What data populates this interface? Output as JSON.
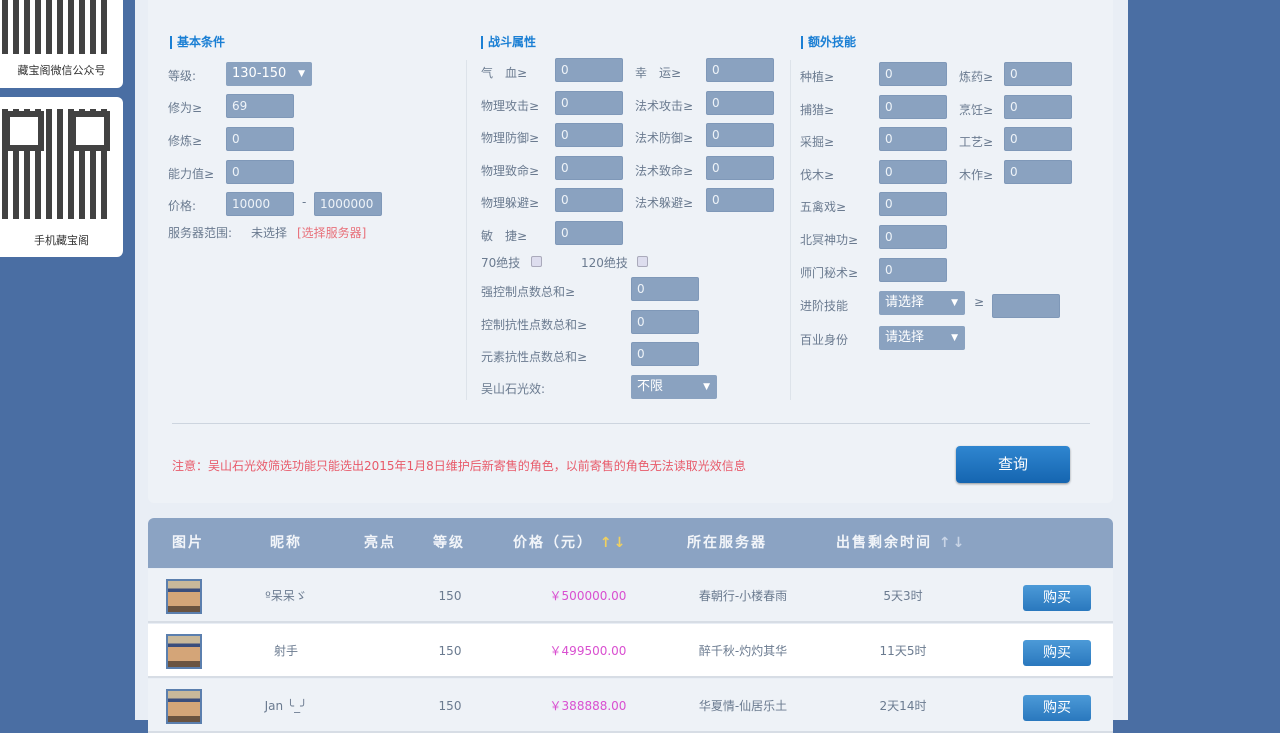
{
  "sidebar": {
    "wechat_caption": "藏宝阁微信公众号",
    "mobile_caption": "手机藏宝阁"
  },
  "basic": {
    "title": "基本条件",
    "level_label": "等级:",
    "level_value": "130-150",
    "xiuwei_label": "修为≥",
    "xiuwei_value": "69",
    "xiulian_label": "修炼≥",
    "xiulian_value": "0",
    "nengli_label": "能力值≥",
    "nengli_value": "0",
    "price_label": "价格:",
    "price_min": "10000",
    "price_sep": "-",
    "price_max": "1000000",
    "server_label": "服务器范围:",
    "server_value": "未选择",
    "server_link": "[选择服务器]"
  },
  "combat": {
    "title": "战斗属性",
    "fields": [
      {
        "label": "气　血≥",
        "value": "0"
      },
      {
        "label": "幸　运≥",
        "value": "0"
      },
      {
        "label": "物理攻击≥",
        "value": "0"
      },
      {
        "label": "法术攻击≥",
        "value": "0"
      },
      {
        "label": "物理防御≥",
        "value": "0"
      },
      {
        "label": "法术防御≥",
        "value": "0"
      },
      {
        "label": "物理致命≥",
        "value": "0"
      },
      {
        "label": "法术致命≥",
        "value": "0"
      },
      {
        "label": "物理躲避≥",
        "value": "0"
      },
      {
        "label": "法术躲避≥",
        "value": "0"
      },
      {
        "label": "敏　捷≥",
        "value": "0"
      }
    ],
    "skill70": "70绝技",
    "skill120": "120绝技",
    "sums": [
      {
        "label": "强控制点数总和≥",
        "value": "0"
      },
      {
        "label": "控制抗性点数总和≥",
        "value": "0"
      },
      {
        "label": "元素抗性点数总和≥",
        "value": "0"
      }
    ],
    "wushan_label": "吴山石光效:",
    "wushan_value": "不限"
  },
  "extra": {
    "title": "额外技能",
    "fields": [
      {
        "label": "种植≥",
        "value": "0"
      },
      {
        "label": "炼药≥",
        "value": "0"
      },
      {
        "label": "捕猎≥",
        "value": "0"
      },
      {
        "label": "烹饪≥",
        "value": "0"
      },
      {
        "label": "采掘≥",
        "value": "0"
      },
      {
        "label": "工艺≥",
        "value": "0"
      },
      {
        "label": "伐木≥",
        "value": "0"
      },
      {
        "label": "木作≥",
        "value": "0"
      },
      {
        "label": "五禽戏≥",
        "value": "0"
      },
      {
        "label": "北冥神功≥",
        "value": "0"
      },
      {
        "label": "师门秘术≥",
        "value": "0"
      }
    ],
    "advanced_label": "进阶技能",
    "advanced_value": "请选择",
    "gte": "≥",
    "advanced_input": "",
    "identity_label": "百业身份",
    "identity_value": "请选择"
  },
  "note": "注意：吴山石光效筛选功能只能选出2015年1月8日维护后新寄售的角色，以前寄售的角色无法读取光效信息",
  "query_label": "查询",
  "table": {
    "headers": [
      "图片",
      "昵称",
      "亮点",
      "等级",
      "价格（元）",
      "所在服务器",
      "出售剩余时间"
    ],
    "sort_arrows": "↑↓",
    "rows": [
      {
        "name": "º呆呆ゞ",
        "level": "150",
        "price": "￥500000.00",
        "server": "春朝行-小楼春雨",
        "time": "5天3时",
        "buy": "购买"
      },
      {
        "name": "射手",
        "level": "150",
        "price": "￥499500.00",
        "server": "醉千秋-灼灼其华",
        "time": "11天5时",
        "buy": "购买"
      },
      {
        "name": "Jan ╰_╯",
        "level": "150",
        "price": "￥388888.00",
        "server": "华夏情-仙居乐土",
        "time": "2天14时",
        "buy": "购买"
      }
    ]
  },
  "colors": {
    "accent": "#1a7fd4",
    "price": "#d94fd0",
    "note": "#e85a6a",
    "header": "#8ba3c3",
    "input": "#8aa2c0"
  }
}
